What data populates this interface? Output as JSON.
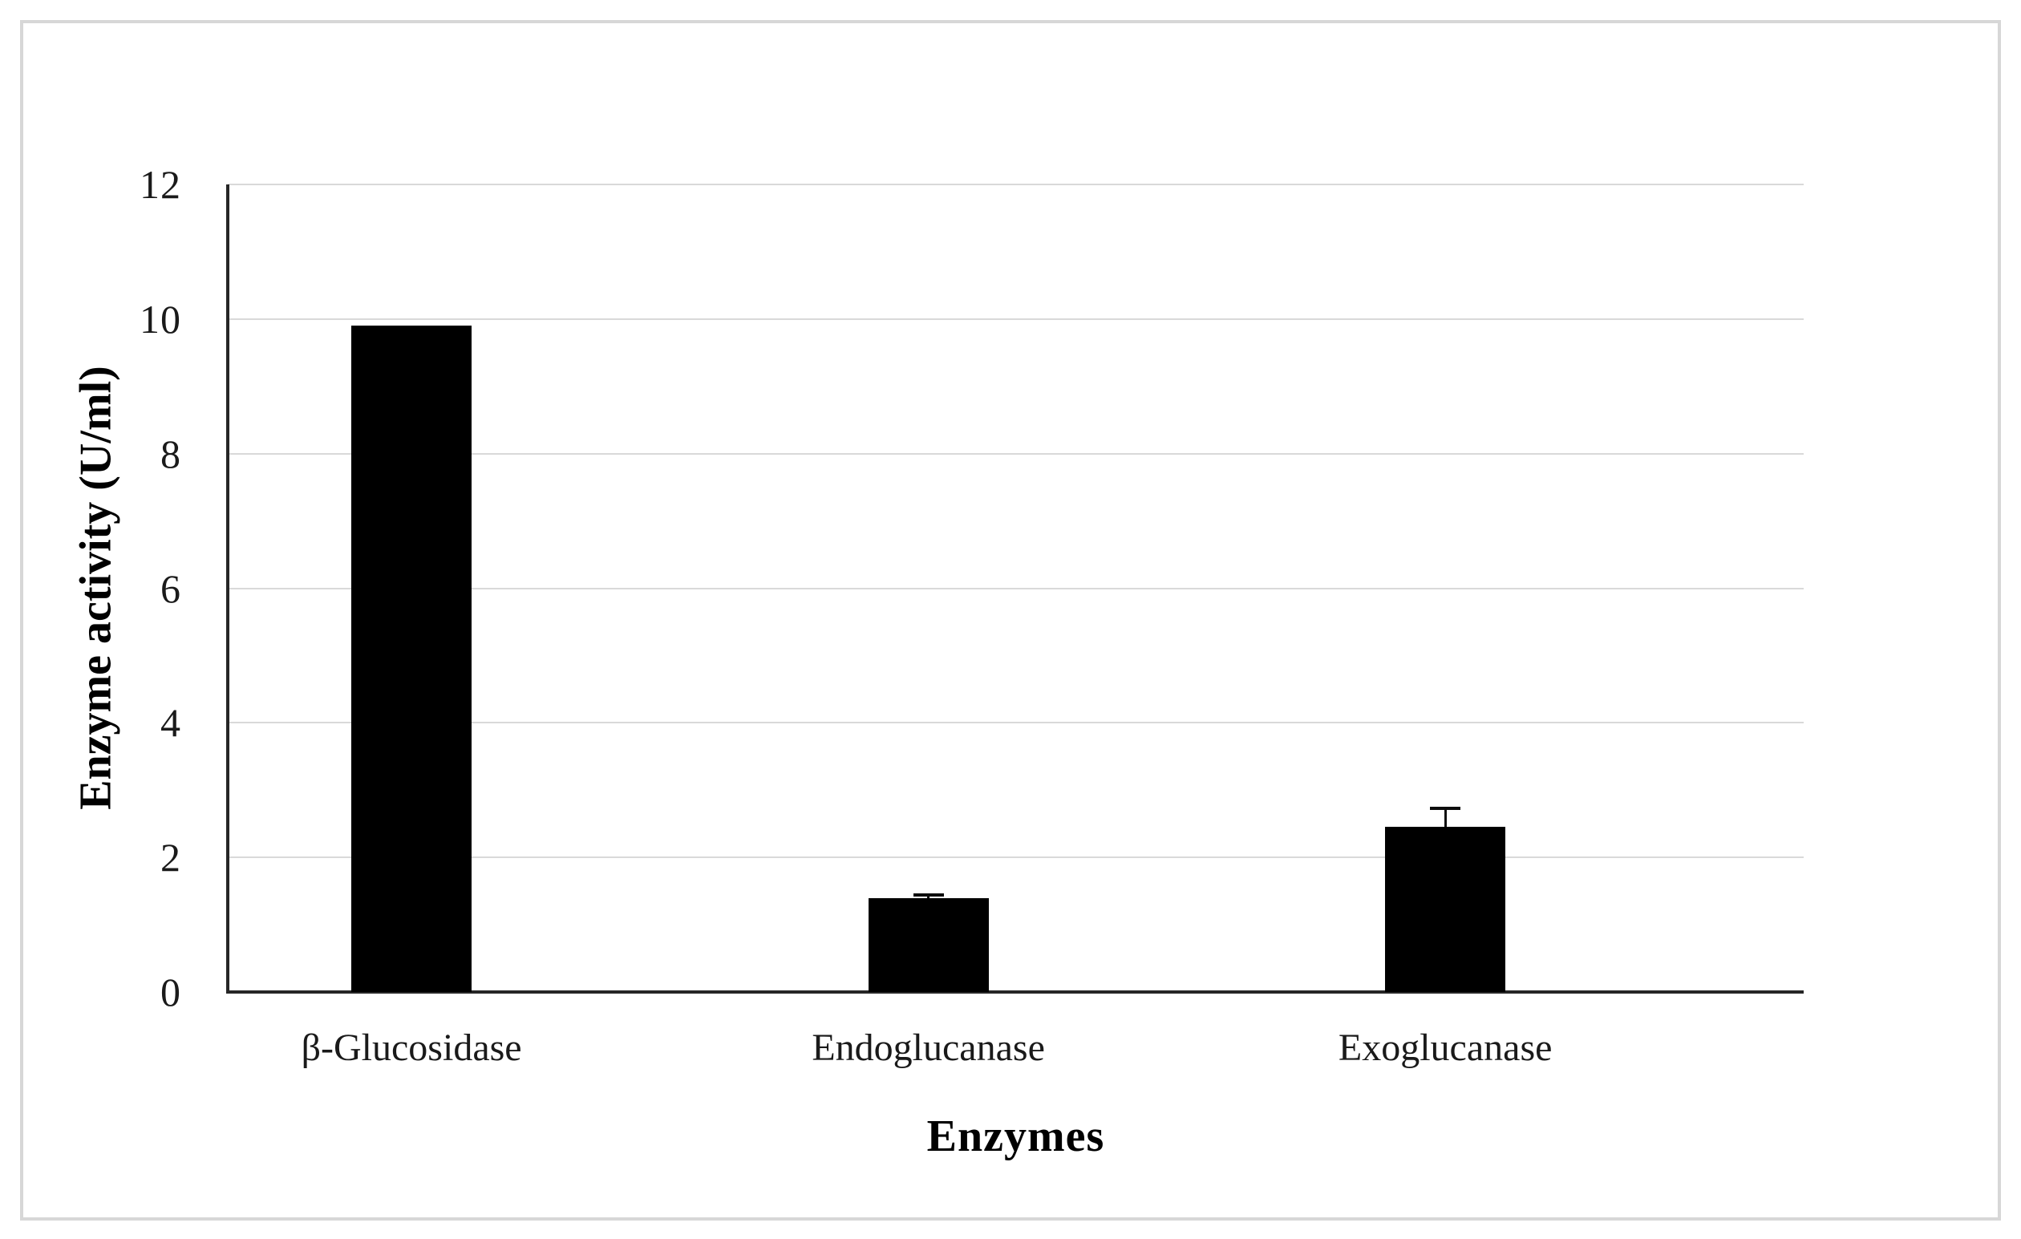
{
  "figure": {
    "y_axis_title": "Enzyme activity (U/ml)",
    "x_axis_title": "Enzymes"
  },
  "chart_data": {
    "type": "bar",
    "title": "",
    "categories": [
      "β-Glucosidase",
      "Endoglucanase",
      "Exoglucanase"
    ],
    "values": [
      9.9,
      1.4,
      2.45
    ],
    "errors_plus": [
      0,
      0.07,
      0.3
    ],
    "xlabel": "Enzymes",
    "ylabel": "Enzyme activity (U/ml)",
    "ylim": [
      0,
      12
    ],
    "yticks": [
      0,
      2,
      4,
      6,
      8,
      10,
      12
    ],
    "grid": "horizontal-only",
    "legend": "none",
    "bar_color": "#000000",
    "gridline_color": "#d9d9d9",
    "axis_color": "#262626",
    "frame_color": "#d7d7d7"
  }
}
